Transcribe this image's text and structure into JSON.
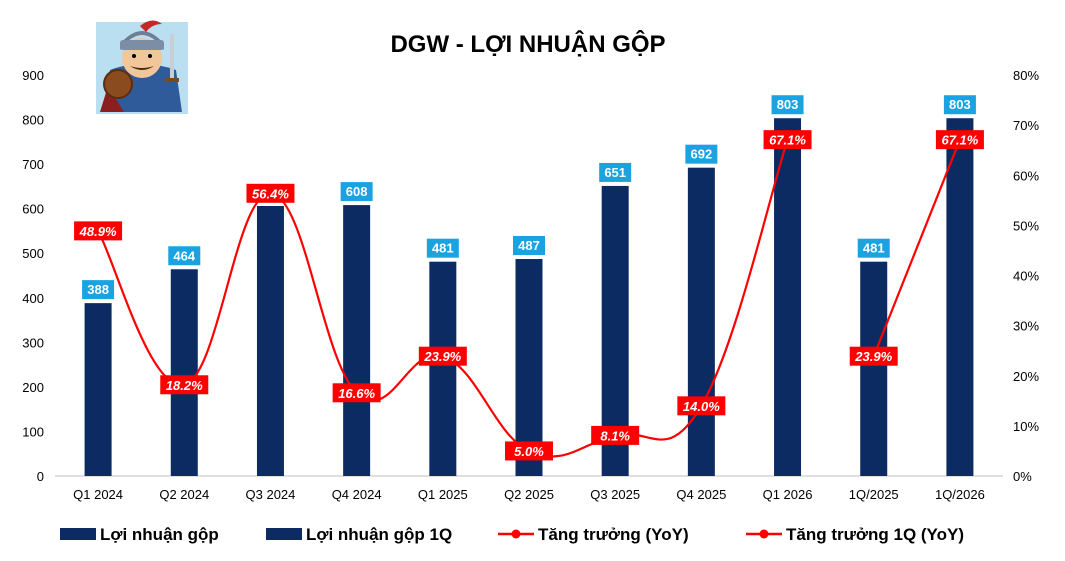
{
  "chart_data": {
    "type": "bar",
    "title": "DGW - LỢI NHUẬN GỘP",
    "categories": [
      "Q1 2024",
      "Q2 2024",
      "Q3 2024",
      "Q4 2024",
      "Q1 2025",
      "Q2 2025",
      "Q3 2025",
      "Q4 2025",
      "Q1 2026",
      "1Q/2025",
      "1Q/2026"
    ],
    "ylim": [
      0,
      900
    ],
    "y_ticks": [
      "0",
      "100",
      "200",
      "300",
      "400",
      "500",
      "600",
      "700",
      "800",
      "900"
    ],
    "y2lim": [
      0,
      80
    ],
    "y2_ticks": [
      "0%",
      "10%",
      "20%",
      "30%",
      "40%",
      "50%",
      "60%",
      "70%",
      "80%"
    ],
    "grid": false,
    "legend_position": "bottom",
    "series": [
      {
        "name": "Lợi nhuận gộp",
        "type": "bar",
        "axis": "left",
        "color": "#0d2b63",
        "values": [
          388,
          464,
          606,
          608,
          481,
          487,
          651,
          692,
          803,
          null,
          null
        ],
        "labels": [
          "388",
          "464",
          "",
          "608",
          "481",
          "487",
          "651",
          "692",
          "803",
          "",
          ""
        ]
      },
      {
        "name": "Lợi nhuận gộp 1Q",
        "type": "bar",
        "axis": "left",
        "color": "#0d2b63",
        "values": [
          null,
          null,
          null,
          null,
          null,
          null,
          null,
          null,
          null,
          481,
          803
        ],
        "labels": [
          "",
          "",
          "",
          "",
          "",
          "",
          "",
          "",
          "",
          "481",
          "803"
        ]
      },
      {
        "name": "Tăng trưởng (YoY)",
        "type": "line",
        "axis": "right",
        "color": "#ff0000",
        "values": [
          48.9,
          18.2,
          56.4,
          16.6,
          23.9,
          5.0,
          8.1,
          14.0,
          67.1,
          null,
          null
        ],
        "labels": [
          "48.9%",
          "18.2%",
          "56.4%",
          "16.6%",
          "23.9%",
          "5.0%",
          "8.1%",
          "14.0%",
          "67.1%",
          "",
          ""
        ]
      },
      {
        "name": "Tăng trưởng 1Q (YoY)",
        "type": "line",
        "axis": "right",
        "color": "#ff0000",
        "values": [
          null,
          null,
          null,
          null,
          null,
          null,
          null,
          null,
          null,
          23.9,
          67.1
        ],
        "labels": [
          "",
          "",
          "",
          "",
          "",
          "",
          "",
          "",
          "",
          "23.9%",
          "67.1%"
        ]
      }
    ]
  },
  "colors": {
    "bar": "#0d2b63",
    "bar_label_bg": "#1aa3e0",
    "line": "#ff0000"
  }
}
